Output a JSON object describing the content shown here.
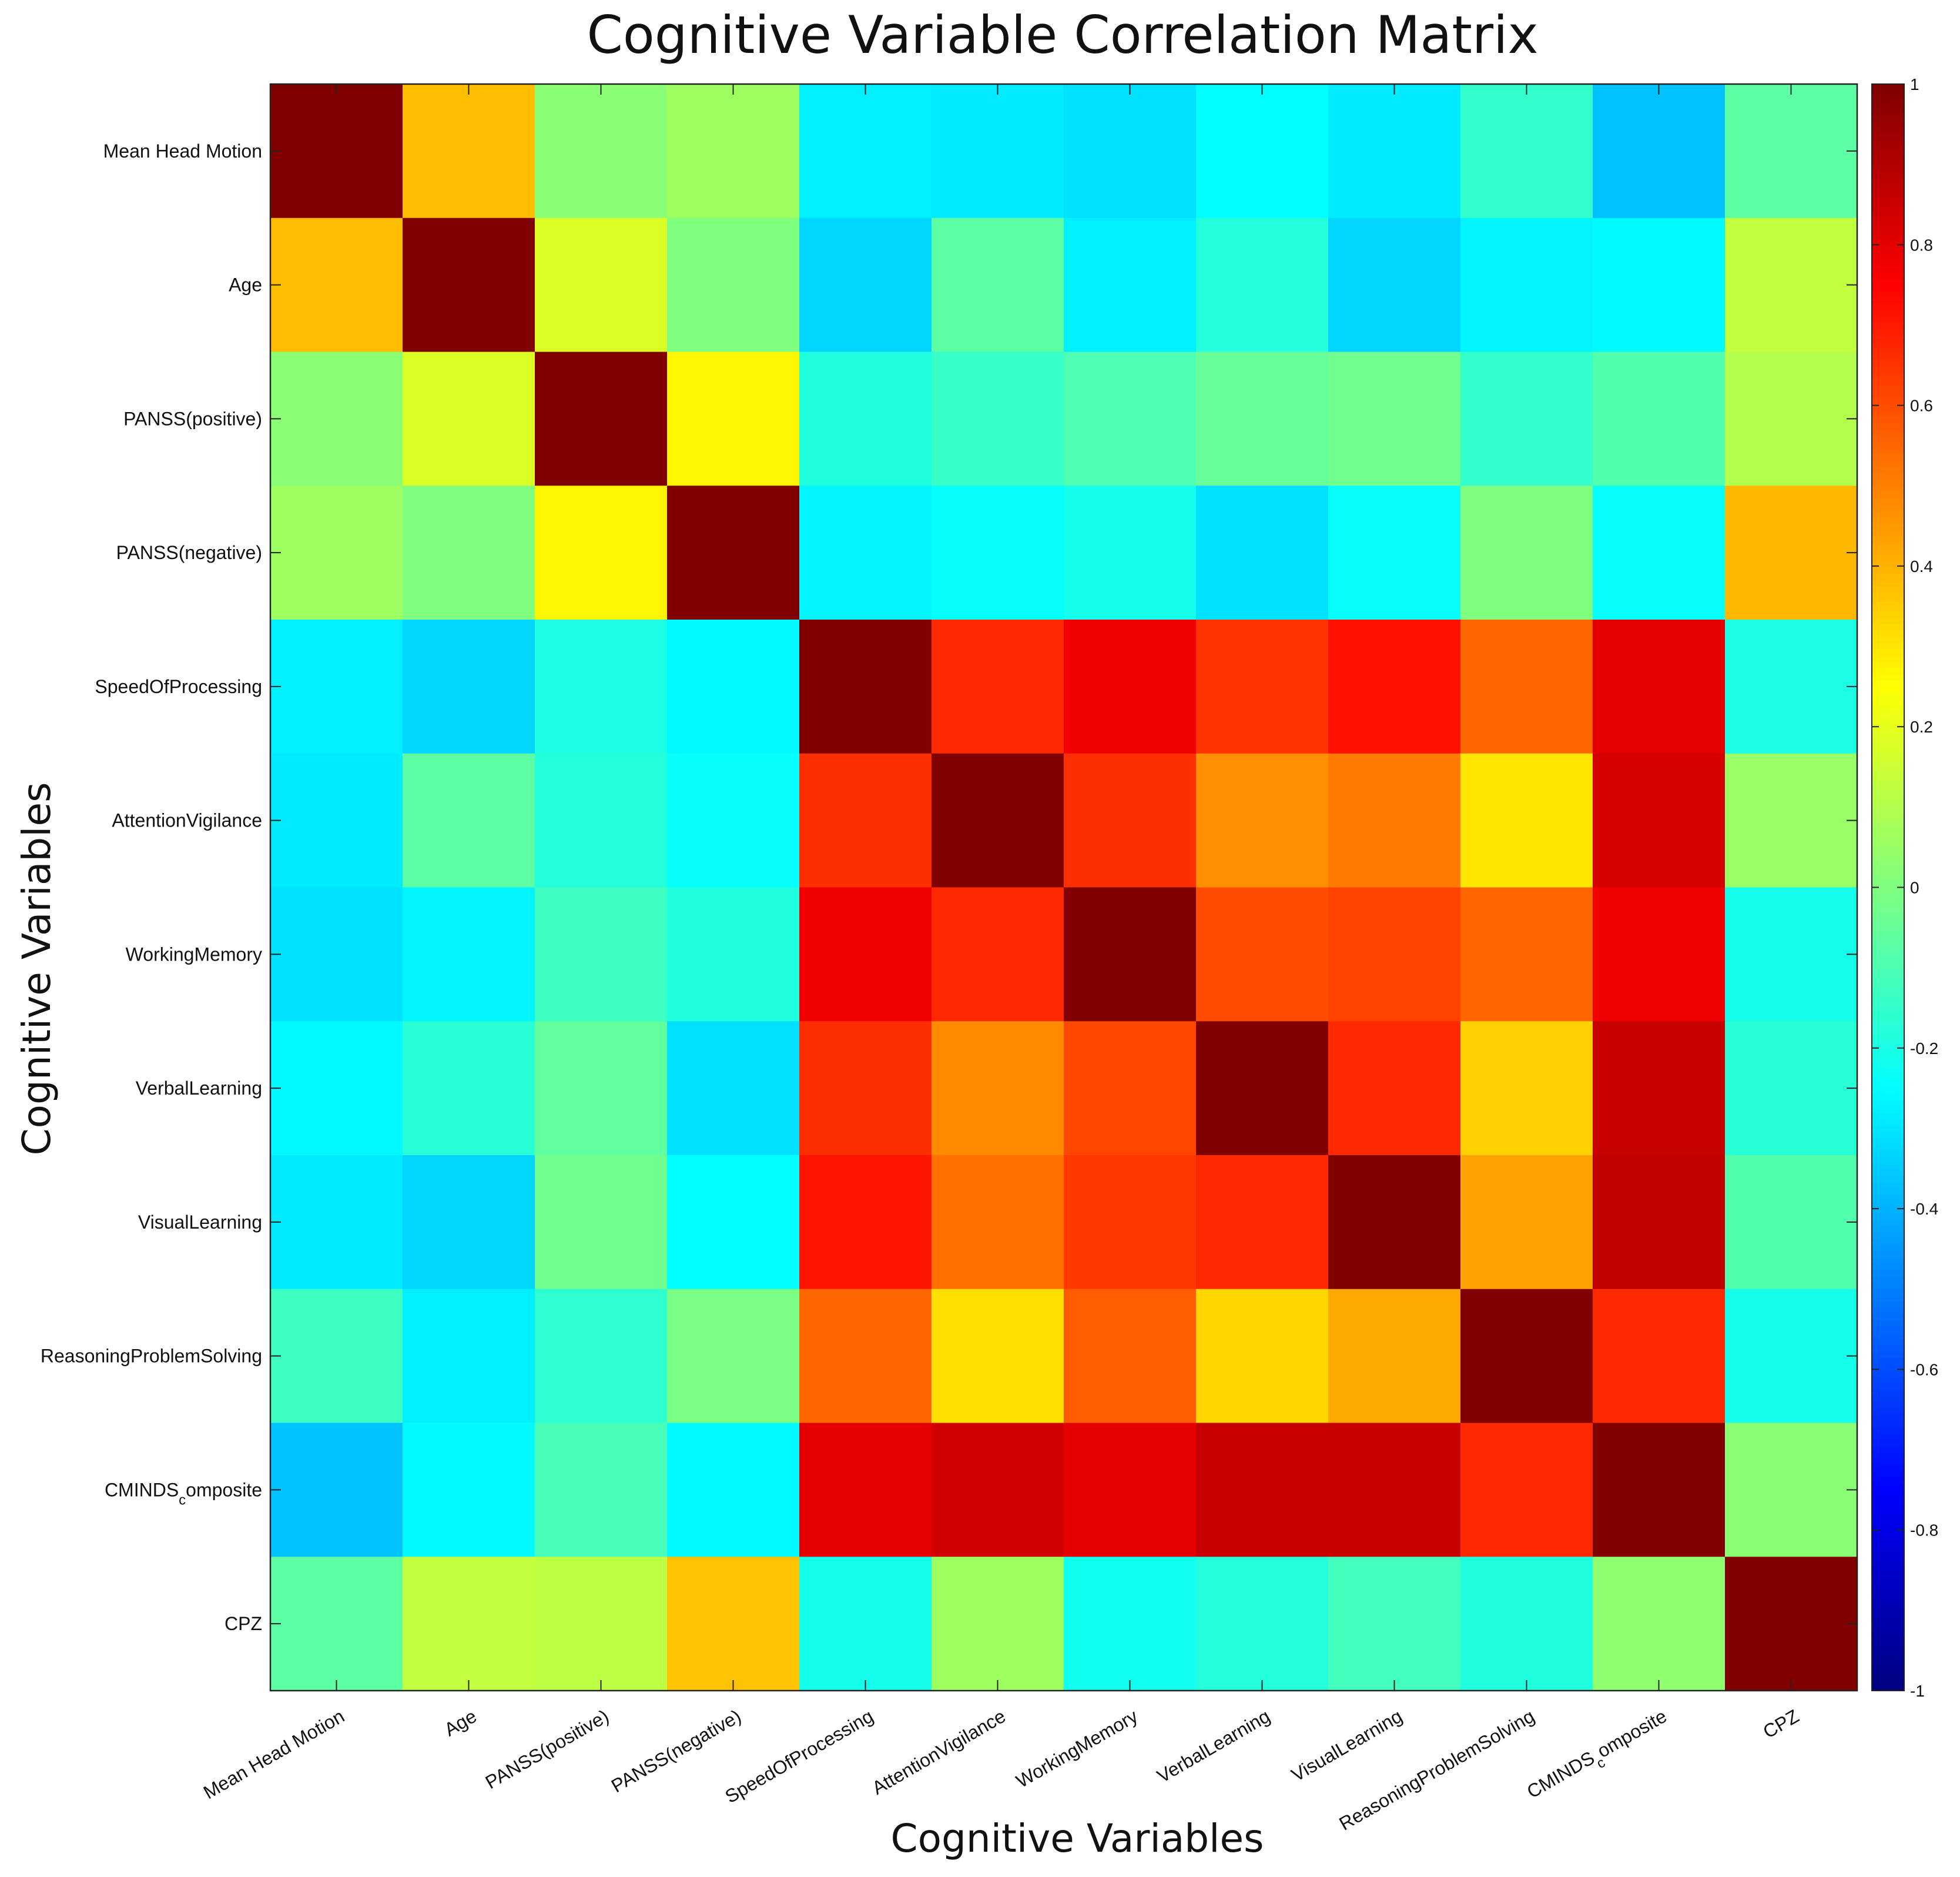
{
  "chart_data": {
    "type": "heatmap",
    "title": "Cognitive Variable Correlation Matrix",
    "xlabel": "Cognitive Variables",
    "ylabel": "Cognitive Variables",
    "categories": [
      "Mean Head Motion",
      "Age",
      "PANSS(positive)",
      "PANSS(negative)",
      "SpeedOfProcessing",
      "AttentionVigilance",
      "WorkingMemory",
      "VerbalLearning",
      "VisualLearning",
      "ReasoningProblemSolving",
      "CMINDS_composite",
      "CPZ"
    ],
    "tick_labels": [
      {
        "main": "Mean Head Motion",
        "sub": ""
      },
      {
        "main": "Age",
        "sub": ""
      },
      {
        "main": "PANSS(positive)",
        "sub": ""
      },
      {
        "main": "PANSS(negative)",
        "sub": ""
      },
      {
        "main": "SpeedOfProcessing",
        "sub": ""
      },
      {
        "main": "AttentionVigilance",
        "sub": ""
      },
      {
        "main": "WorkingMemory",
        "sub": ""
      },
      {
        "main": "VerbalLearning",
        "sub": ""
      },
      {
        "main": "VisualLearning",
        "sub": ""
      },
      {
        "main": "ReasoningProblemSolving",
        "sub": ""
      },
      {
        "main": "CMINDS",
        "sub": "c",
        "rest": "omposite"
      },
      {
        "main": "CPZ",
        "sub": ""
      }
    ],
    "values": [
      [
        1.0,
        0.38,
        0.02,
        0.06,
        -0.28,
        -0.29,
        -0.31,
        -0.25,
        -0.29,
        -0.15,
        -0.37,
        -0.07
      ],
      [
        0.38,
        1.0,
        0.18,
        0.0,
        -0.33,
        -0.07,
        -0.28,
        -0.18,
        -0.33,
        -0.27,
        -0.26,
        0.13
      ],
      [
        0.02,
        0.18,
        1.0,
        0.27,
        -0.19,
        -0.14,
        -0.1,
        -0.05,
        -0.03,
        -0.15,
        -0.09,
        0.1
      ],
      [
        0.06,
        0.0,
        0.27,
        1.0,
        -0.27,
        -0.24,
        -0.21,
        -0.31,
        -0.24,
        0.0,
        -0.24,
        0.39
      ],
      [
        -0.28,
        -0.33,
        -0.2,
        -0.26,
        1.0,
        0.67,
        0.78,
        0.65,
        0.72,
        0.55,
        0.8,
        -0.2
      ],
      [
        -0.29,
        -0.07,
        -0.18,
        -0.24,
        0.66,
        1.0,
        0.66,
        0.47,
        0.51,
        0.3,
        0.83,
        0.05
      ],
      [
        -0.31,
        -0.27,
        -0.13,
        -0.19,
        0.78,
        0.67,
        1.0,
        0.6,
        0.62,
        0.55,
        0.78,
        -0.21
      ],
      [
        -0.26,
        -0.17,
        -0.06,
        -0.31,
        0.66,
        0.48,
        0.61,
        1.0,
        0.67,
        0.34,
        0.86,
        -0.17
      ],
      [
        -0.29,
        -0.33,
        -0.03,
        -0.25,
        0.71,
        0.53,
        0.64,
        0.67,
        1.0,
        0.43,
        0.87,
        -0.09
      ],
      [
        -0.13,
        -0.28,
        -0.16,
        -0.01,
        0.55,
        0.31,
        0.57,
        0.33,
        0.42,
        1.0,
        0.67,
        -0.21
      ],
      [
        -0.37,
        -0.26,
        -0.11,
        -0.26,
        0.8,
        0.84,
        0.8,
        0.86,
        0.86,
        0.67,
        1.0,
        0.02
      ],
      [
        -0.07,
        0.13,
        0.12,
        0.37,
        -0.21,
        0.06,
        -0.22,
        -0.18,
        -0.12,
        -0.19,
        0.03,
        1.0
      ]
    ],
    "colormap": "jet",
    "clim": [
      -1,
      1
    ],
    "colorbar_ticks": [
      "1",
      "0.8",
      "0.6",
      "0.4",
      "0.2",
      "0",
      "-0.2",
      "-0.4",
      "-0.6",
      "-0.8",
      "-1"
    ],
    "colorbar_values": [
      1,
      0.8,
      0.6,
      0.4,
      0.2,
      0,
      -0.2,
      -0.4,
      -0.6,
      -0.8,
      -1
    ],
    "legend": "colorbar-right",
    "grid": false
  }
}
